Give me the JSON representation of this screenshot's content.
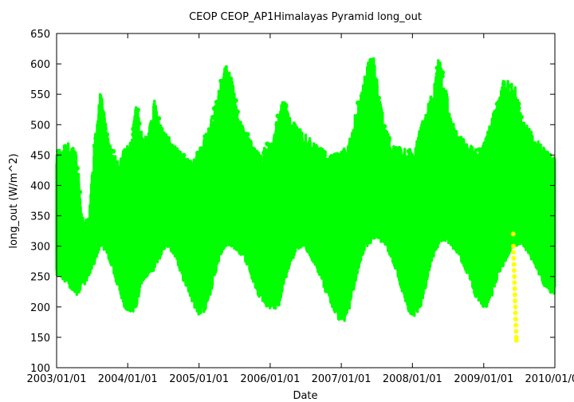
{
  "chart_data": {
    "type": "scatter",
    "title": "CEOP CEOP_AP1Himalayas Pyramid  long_out",
    "xlabel": "Date",
    "ylabel": "long_out (W/m^2)",
    "xlim": [
      "2003/01/01",
      "2010/01/01"
    ],
    "ylim": [
      100,
      650
    ],
    "x_ticks": [
      "2003/01/01",
      "2004/01/01",
      "2005/01/01",
      "2006/01/01",
      "2007/01/01",
      "2008/01/01",
      "2009/01/01",
      "2010/01/01"
    ],
    "y_ticks": [
      100,
      150,
      200,
      250,
      300,
      350,
      400,
      450,
      500,
      550,
      600,
      650
    ],
    "grid": false,
    "series": [
      {
        "color": "#00ff00",
        "description_of_envelope": "dense hourly values; monthly approximate min/max envelope",
        "monthly_range": [
          [
            "2003/01",
            250,
            460
          ],
          [
            "2003/02",
            240,
            470
          ],
          [
            "2003/03",
            230,
            470
          ],
          [
            "2003/04",
            220,
            450
          ],
          [
            "2003/05",
            230,
            350
          ],
          [
            "2003/06",
            250,
            340
          ],
          [
            "2003/07",
            270,
            480
          ],
          [
            "2003/08",
            300,
            560
          ],
          [
            "2003/09",
            290,
            490
          ],
          [
            "2003/10",
            260,
            460
          ],
          [
            "2003/11",
            230,
            440
          ],
          [
            "2003/12",
            200,
            460
          ],
          [
            "2004/01",
            185,
            470
          ],
          [
            "2004/02",
            200,
            540
          ],
          [
            "2004/03",
            240,
            480
          ],
          [
            "2004/04",
            250,
            480
          ],
          [
            "2004/05",
            260,
            550
          ],
          [
            "2004/06",
            280,
            500
          ],
          [
            "2004/07",
            300,
            490
          ],
          [
            "2004/08",
            290,
            470
          ],
          [
            "2004/09",
            270,
            460
          ],
          [
            "2004/10",
            240,
            450
          ],
          [
            "2004/11",
            220,
            440
          ],
          [
            "2004/12",
            190,
            450
          ],
          [
            "2005/01",
            185,
            470
          ],
          [
            "2005/02",
            200,
            490
          ],
          [
            "2005/03",
            240,
            520
          ],
          [
            "2005/04",
            280,
            560
          ],
          [
            "2005/05",
            300,
            600
          ],
          [
            "2005/06",
            300,
            580
          ],
          [
            "2005/07",
            290,
            530
          ],
          [
            "2005/08",
            280,
            500
          ],
          [
            "2005/09",
            260,
            480
          ],
          [
            "2005/10",
            230,
            460
          ],
          [
            "2005/11",
            210,
            450
          ],
          [
            "2005/12",
            200,
            470
          ],
          [
            "2006/01",
            195,
            470
          ],
          [
            "2006/02",
            200,
            530
          ],
          [
            "2006/03",
            240,
            540
          ],
          [
            "2006/04",
            270,
            510
          ],
          [
            "2006/05",
            290,
            500
          ],
          [
            "2006/06",
            300,
            490
          ],
          [
            "2006/07",
            290,
            480
          ],
          [
            "2006/08",
            270,
            470
          ],
          [
            "2006/09",
            250,
            460
          ],
          [
            "2006/10",
            220,
            455
          ],
          [
            "2006/11",
            200,
            450
          ],
          [
            "2006/12",
            180,
            455
          ],
          [
            "2007/01",
            175,
            460
          ],
          [
            "2007/02",
            200,
            480
          ],
          [
            "2007/03",
            240,
            520
          ],
          [
            "2007/04",
            280,
            560
          ],
          [
            "2007/05",
            300,
            600
          ],
          [
            "2007/06",
            310,
            615
          ],
          [
            "2007/07",
            310,
            550
          ],
          [
            "2007/08",
            300,
            500
          ],
          [
            "2007/09",
            280,
            470
          ],
          [
            "2007/10",
            250,
            465
          ],
          [
            "2007/11",
            220,
            460
          ],
          [
            "2007/12",
            190,
            460
          ],
          [
            "2008/01",
            185,
            470
          ],
          [
            "2008/02",
            200,
            500
          ],
          [
            "2008/03",
            240,
            530
          ],
          [
            "2008/04",
            280,
            560
          ],
          [
            "2008/05",
            300,
            615
          ],
          [
            "2008/06",
            310,
            570
          ],
          [
            "2008/07",
            300,
            520
          ],
          [
            "2008/08",
            290,
            490
          ],
          [
            "2008/09",
            270,
            480
          ],
          [
            "2008/10",
            250,
            470
          ],
          [
            "2008/11",
            220,
            460
          ],
          [
            "2008/12",
            200,
            460
          ],
          [
            "2009/01",
            200,
            480
          ],
          [
            "2009/02",
            220,
            520
          ],
          [
            "2009/03",
            250,
            540
          ],
          [
            "2009/04",
            270,
            580
          ],
          [
            "2009/05",
            290,
            570
          ],
          [
            "2009/06",
            300,
            560
          ],
          [
            "2009/07",
            300,
            510
          ],
          [
            "2009/08",
            290,
            500
          ],
          [
            "2009/09",
            270,
            480
          ],
          [
            "2009/10",
            250,
            470
          ],
          [
            "2009/11",
            230,
            460
          ],
          [
            "2009/12",
            220,
            450
          ]
        ]
      },
      {
        "color": "#ffff00",
        "points": [
          [
            "2009/06/01",
            320
          ],
          [
            "2009/06/02",
            300
          ],
          [
            "2009/06/03",
            290
          ],
          [
            "2009/06/04",
            280
          ],
          [
            "2009/06/05",
            270
          ],
          [
            "2009/06/06",
            260
          ],
          [
            "2009/06/07",
            250
          ],
          [
            "2009/06/08",
            240
          ],
          [
            "2009/06/09",
            230
          ],
          [
            "2009/06/10",
            220
          ],
          [
            "2009/06/11",
            210
          ],
          [
            "2009/06/12",
            200
          ],
          [
            "2009/06/13",
            190
          ],
          [
            "2009/06/14",
            180
          ],
          [
            "2009/06/15",
            170
          ],
          [
            "2009/06/16",
            160
          ],
          [
            "2009/06/17",
            150
          ],
          [
            "2009/06/18",
            145
          ]
        ]
      }
    ]
  }
}
